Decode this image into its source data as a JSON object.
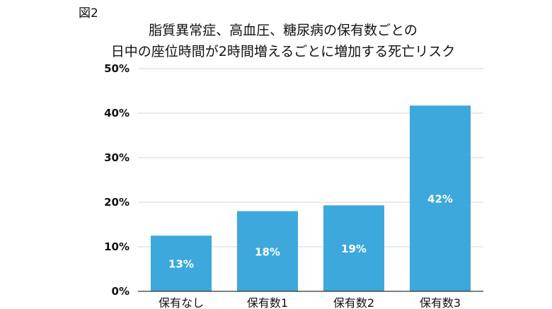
{
  "figure_label": "図2",
  "title_lines": [
    "脂質異常症、高血圧、糖尿病の保有数ごとの",
    "日中の座位時間が2時間増えるごとに増加する死亡リスク"
  ],
  "colors": {
    "bar": "#3da8dc",
    "grid": "#d6d6d6",
    "axis": "#333333"
  },
  "chart_data": {
    "type": "bar",
    "title": "脂質異常症、高血圧、糖尿病の保有数ごとの日中の座位時間が2時間増えるごとに増加する死亡リスク",
    "categories": [
      "保有なし",
      "保有数1",
      "保有数2",
      "保有数3"
    ],
    "values": [
      12.5,
      18,
      19.3,
      41.7
    ],
    "data_labels": [
      "13%",
      "18%",
      "19%",
      "42%"
    ],
    "xlabel": "",
    "ylabel": "",
    "ylim": [
      0,
      50
    ],
    "yticks": [
      0,
      10,
      20,
      30,
      40,
      50
    ],
    "ytick_labels": [
      "0%",
      "10%",
      "20%",
      "30%",
      "40%",
      "50%"
    ],
    "grid": true,
    "legend": "none"
  }
}
